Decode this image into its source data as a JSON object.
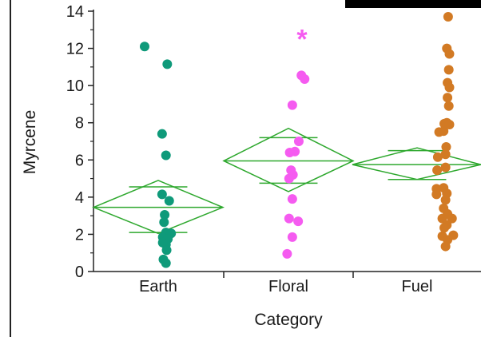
{
  "chart_data": {
    "type": "scatter",
    "title": "",
    "xlabel": "Category",
    "ylabel": "Myrcene",
    "ylim": [
      0,
      14
    ],
    "yticks": [
      0,
      2,
      4,
      6,
      8,
      10,
      12,
      14
    ],
    "categories": [
      "Earth",
      "Floral",
      "Fuel"
    ],
    "grid": false,
    "colors": {
      "Earth": "#0f9a7a",
      "Floral": "#f55bf0",
      "Fuel": "#d27a24",
      "diamond": "#2ea82e",
      "axis": "#222222"
    },
    "series": [
      {
        "category": "Earth",
        "points": [
          {
            "x": -0.21,
            "y": 12.1
          },
          {
            "x": 0.14,
            "y": 11.15
          },
          {
            "x": 0.06,
            "y": 7.4
          },
          {
            "x": 0.12,
            "y": 6.25
          },
          {
            "x": 0.06,
            "y": 4.15
          },
          {
            "x": 0.17,
            "y": 3.8
          },
          {
            "x": 0.1,
            "y": 3.05
          },
          {
            "x": 0.09,
            "y": 2.65
          },
          {
            "x": 0.2,
            "y": 2.05
          },
          {
            "x": 0.12,
            "y": 2.1
          },
          {
            "x": 0.07,
            "y": 1.85
          },
          {
            "x": 0.15,
            "y": 1.75
          },
          {
            "x": 0.12,
            "y": 1.45
          },
          {
            "x": 0.07,
            "y": 1.55
          },
          {
            "x": 0.13,
            "y": 1.15
          },
          {
            "x": 0.08,
            "y": 0.65
          },
          {
            "x": 0.12,
            "y": 0.45
          }
        ],
        "mean": 3.45,
        "mean_inner": [
          2.1,
          4.55
        ],
        "ci": [
          2.05,
          4.9
        ]
      },
      {
        "category": "Floral",
        "points": [
          {
            "x": -0.02,
            "y": 0.95
          },
          {
            "x": 0.06,
            "y": 1.85
          },
          {
            "x": 0.15,
            "y": 2.7
          },
          {
            "x": 0.01,
            "y": 2.85
          },
          {
            "x": 0.06,
            "y": 3.9
          },
          {
            "x": 0.01,
            "y": 5.0
          },
          {
            "x": 0.07,
            "y": 5.2
          },
          {
            "x": 0.04,
            "y": 5.45
          },
          {
            "x": 0.1,
            "y": 6.45
          },
          {
            "x": 0.02,
            "y": 6.4
          },
          {
            "x": 0.16,
            "y": 7.0
          },
          {
            "x": 0.06,
            "y": 8.95
          },
          {
            "x": 0.2,
            "y": 10.55
          },
          {
            "x": 0.25,
            "y": 10.35
          }
        ],
        "outlier_marker": {
          "label": "*",
          "x": 0.21,
          "y": 12.6
        },
        "mean": 5.95,
        "mean_inner": [
          4.75,
          7.2
        ],
        "ci": [
          4.3,
          7.7
        ]
      },
      {
        "category": "Fuel",
        "points": [
          {
            "x": 0.48,
            "y": 13.7
          },
          {
            "x": 0.46,
            "y": 12.0
          },
          {
            "x": 0.5,
            "y": 11.7
          },
          {
            "x": 0.49,
            "y": 10.85
          },
          {
            "x": 0.47,
            "y": 10.15
          },
          {
            "x": 0.5,
            "y": 9.9
          },
          {
            "x": 0.47,
            "y": 9.35
          },
          {
            "x": 0.49,
            "y": 8.9
          },
          {
            "x": 0.46,
            "y": 8.0
          },
          {
            "x": 0.42,
            "y": 7.95
          },
          {
            "x": 0.5,
            "y": 7.9
          },
          {
            "x": 0.41,
            "y": 7.55
          },
          {
            "x": 0.34,
            "y": 7.5
          },
          {
            "x": 0.45,
            "y": 6.7
          },
          {
            "x": 0.44,
            "y": 6.3
          },
          {
            "x": 0.32,
            "y": 6.15
          },
          {
            "x": 0.44,
            "y": 5.6
          },
          {
            "x": 0.31,
            "y": 5.45
          },
          {
            "x": 0.3,
            "y": 4.45
          },
          {
            "x": 0.41,
            "y": 4.5
          },
          {
            "x": 0.3,
            "y": 4.15
          },
          {
            "x": 0.46,
            "y": 4.2
          },
          {
            "x": 0.44,
            "y": 3.85
          },
          {
            "x": 0.41,
            "y": 3.4
          },
          {
            "x": 0.47,
            "y": 3.1
          },
          {
            "x": 0.39,
            "y": 2.85
          },
          {
            "x": 0.54,
            "y": 2.85
          },
          {
            "x": 0.46,
            "y": 2.5
          },
          {
            "x": 0.42,
            "y": 2.35
          },
          {
            "x": 0.39,
            "y": 1.9
          },
          {
            "x": 0.47,
            "y": 1.7
          },
          {
            "x": 0.56,
            "y": 1.95
          },
          {
            "x": 0.44,
            "y": 1.35
          }
        ],
        "mean": 5.75,
        "mean_inner": [
          4.95,
          6.5
        ],
        "ci": [
          4.95,
          6.65
        ]
      }
    ]
  }
}
